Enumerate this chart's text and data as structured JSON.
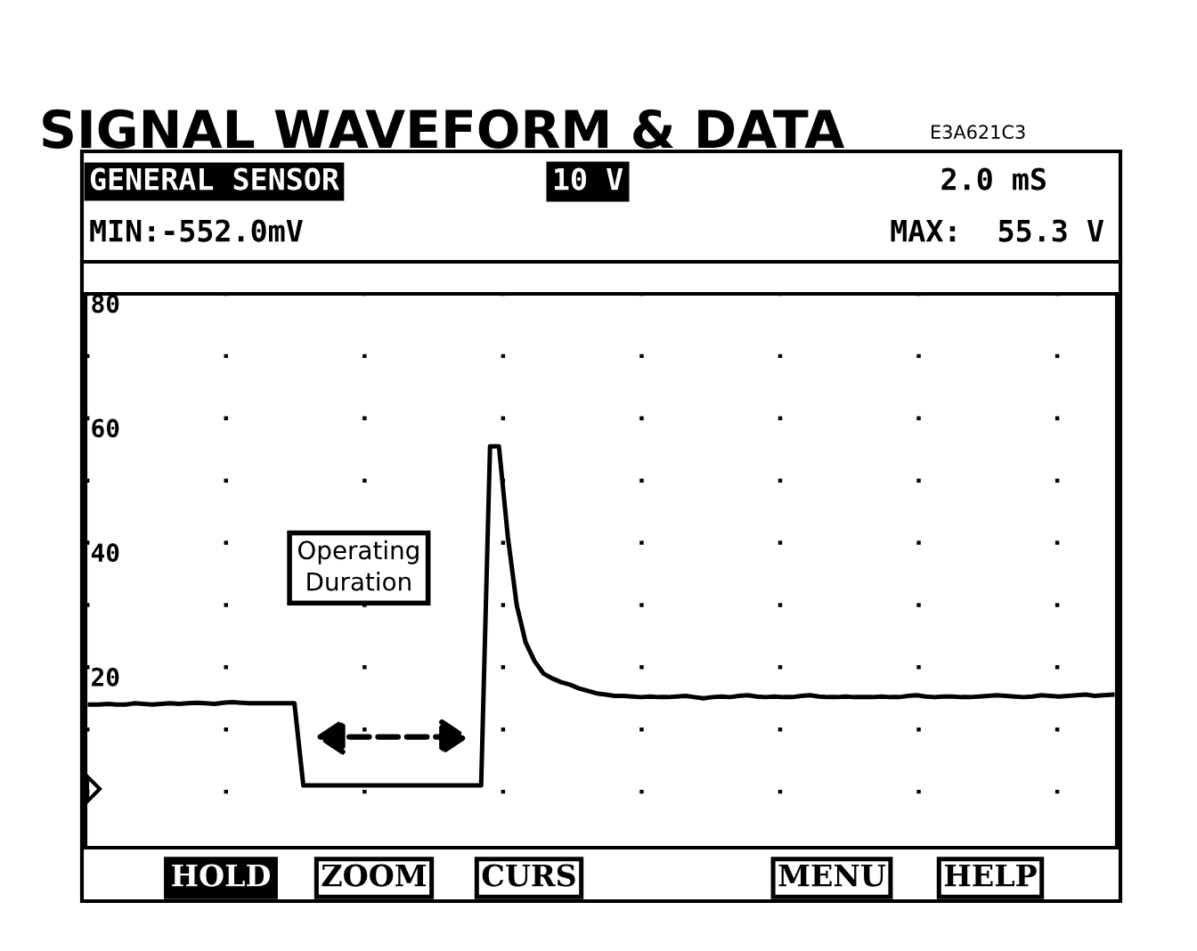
{
  "chart_data": {
    "type": "line",
    "title": "SIGNAL WAVEFORM & DATA",
    "annotations": [
      "E3A621C3",
      "GENERAL SENSOR",
      "10 V",
      "2.0 mS",
      "MIN:-552.0mV",
      "MAX:  55.3 V",
      "Operating\nDuration",
      "HOLD",
      "ZOOM",
      "CURS",
      "MENU",
      "HELP"
    ],
    "categories": [
      null,
      null,
      null,
      null,
      null,
      null,
      null,
      null,
      null,
      null,
      null,
      null,
      null,
      null,
      null,
      null,
      null,
      null,
      null,
      null,
      null,
      null,
      null,
      null,
      null,
      null,
      null,
      null,
      null,
      null,
      null,
      null,
      null,
      null,
      null,
      null,
      null,
      null,
      null,
      null,
      null,
      null,
      null,
      null,
      null,
      null,
      null,
      null,
      null,
      null,
      null,
      null,
      null,
      null,
      null,
      null,
      null,
      null,
      null,
      null,
      null,
      null,
      null,
      null,
      null,
      null,
      null,
      null,
      null,
      null,
      null,
      null,
      null,
      null,
      null,
      null,
      null,
      null,
      null,
      null,
      null,
      null,
      null,
      null,
      null,
      null,
      null,
      null,
      null,
      null,
      null,
      null,
      null,
      null,
      null,
      null,
      null,
      null,
      null,
      null,
      null,
      null,
      null,
      null,
      null,
      null,
      null,
      null,
      null,
      null,
      null,
      null,
      null,
      null,
      null,
      null
    ],
    "series": [
      {
        "color": "#000000",
        "values": [
          14.0,
          14.0,
          14.1,
          14.0,
          14.0,
          14.2,
          14.1,
          14.0,
          14.1,
          14.2,
          14.1,
          14.2,
          14.3,
          14.2,
          14.1,
          14.3,
          14.4,
          14.3,
          14.2,
          14.2,
          14.2,
          14.2,
          14.2,
          14.2,
          1.0,
          1.0,
          1.0,
          1.0,
          1.0,
          1.0,
          1.0,
          1.0,
          1.0,
          1.0,
          1.0,
          1.0,
          1.0,
          1.0,
          1.0,
          1.0,
          1.0,
          1.0,
          1.0,
          1.0,
          1.0,
          55.5,
          55.5,
          41.0,
          30.0,
          24.0,
          21.0,
          19.0,
          18.2,
          17.6,
          17.2,
          16.6,
          16.2,
          15.8,
          15.6,
          15.4,
          15.4,
          15.3,
          15.2,
          15.3,
          15.2,
          15.2,
          15.3,
          15.4,
          15.2,
          15.0,
          15.2,
          15.3,
          15.2,
          15.4,
          15.5,
          15.3,
          15.2,
          15.3,
          15.2,
          15.2,
          15.4,
          15.5,
          15.3,
          15.2,
          15.2,
          15.3,
          15.2,
          15.2,
          15.2,
          15.3,
          15.2,
          15.2,
          15.4,
          15.5,
          15.3,
          15.2,
          15.3,
          15.3,
          15.2,
          15.2,
          15.3,
          15.4,
          15.5,
          15.4,
          15.3,
          15.2,
          15.3,
          15.5,
          15.4,
          15.3,
          15.4,
          15.5,
          15.6,
          15.4,
          15.5,
          15.6
        ]
      }
    ],
    "ylim": [
      -9,
      80
    ],
    "yticks": [
      {
        "value": 0,
        "label": null
      },
      {
        "value": 10,
        "label": null
      },
      20,
      {
        "value": 30,
        "label": null
      },
      40,
      {
        "value": 50,
        "label": null
      },
      60,
      {
        "value": 70,
        "label": null
      },
      80
    ],
    "grid": "y",
    "legend": false,
    "line_style": "solid",
    "marker": "none"
  }
}
